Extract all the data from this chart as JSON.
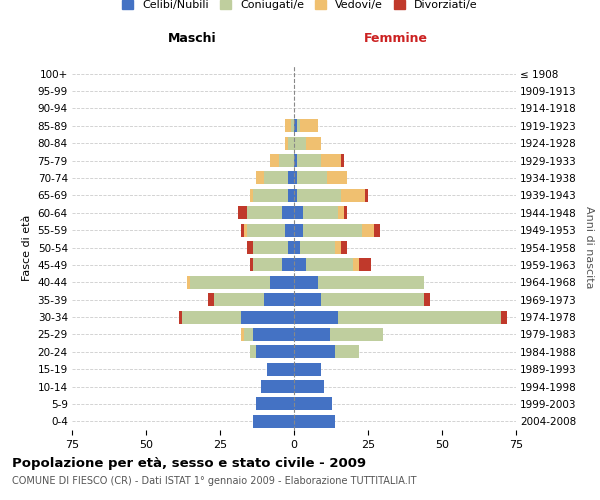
{
  "age_groups": [
    "0-4",
    "5-9",
    "10-14",
    "15-19",
    "20-24",
    "25-29",
    "30-34",
    "35-39",
    "40-44",
    "45-49",
    "50-54",
    "55-59",
    "60-64",
    "65-69",
    "70-74",
    "75-79",
    "80-84",
    "85-89",
    "90-94",
    "95-99",
    "100+"
  ],
  "birth_years": [
    "2004-2008",
    "1999-2003",
    "1994-1998",
    "1989-1993",
    "1984-1988",
    "1979-1983",
    "1974-1978",
    "1969-1973",
    "1964-1968",
    "1959-1963",
    "1954-1958",
    "1949-1953",
    "1944-1948",
    "1939-1943",
    "1934-1938",
    "1929-1933",
    "1924-1928",
    "1919-1923",
    "1914-1918",
    "1909-1913",
    "≤ 1908"
  ],
  "colors": {
    "celibi": "#4472C4",
    "coniugati": "#BFCE9E",
    "vedovi": "#F0C070",
    "divorziati": "#C0392B"
  },
  "male": {
    "celibi": [
      14,
      13,
      11,
      9,
      13,
      14,
      18,
      10,
      8,
      4,
      2,
      3,
      4,
      2,
      2,
      0,
      0,
      0,
      0,
      0,
      0
    ],
    "coniugati": [
      0,
      0,
      0,
      0,
      2,
      3,
      20,
      17,
      27,
      10,
      12,
      13,
      12,
      12,
      8,
      5,
      2,
      1,
      0,
      0,
      0
    ],
    "vedovi": [
      0,
      0,
      0,
      0,
      0,
      1,
      0,
      0,
      1,
      0,
      0,
      1,
      0,
      1,
      3,
      3,
      1,
      2,
      0,
      0,
      0
    ],
    "divorziati": [
      0,
      0,
      0,
      0,
      0,
      0,
      1,
      2,
      0,
      1,
      2,
      1,
      3,
      0,
      0,
      0,
      0,
      0,
      0,
      0,
      0
    ]
  },
  "female": {
    "celibi": [
      14,
      13,
      10,
      9,
      14,
      12,
      15,
      9,
      8,
      4,
      2,
      3,
      3,
      1,
      1,
      1,
      0,
      1,
      0,
      0,
      0
    ],
    "coniugati": [
      0,
      0,
      0,
      0,
      8,
      18,
      55,
      35,
      36,
      16,
      12,
      20,
      12,
      15,
      10,
      8,
      4,
      1,
      0,
      0,
      0
    ],
    "vedovi": [
      0,
      0,
      0,
      0,
      0,
      0,
      0,
      0,
      0,
      2,
      2,
      4,
      2,
      8,
      7,
      7,
      5,
      6,
      0,
      0,
      0
    ],
    "divorziati": [
      0,
      0,
      0,
      0,
      0,
      0,
      2,
      2,
      0,
      4,
      2,
      2,
      1,
      1,
      0,
      1,
      0,
      0,
      0,
      0,
      0
    ]
  },
  "title": "Popolazione per età, sesso e stato civile - 2009",
  "subtitle": "COMUNE DI FIESCO (CR) - Dati ISTAT 1° gennaio 2009 - Elaborazione TUTTITALIA.IT",
  "xlabel_left": "Maschi",
  "xlabel_right": "Femmine",
  "ylabel_left": "Fasce di età",
  "ylabel_right": "Anni di nascita",
  "xlim": 75,
  "legend_labels": [
    "Celibi/Nubili",
    "Coniugati/e",
    "Vedovi/e",
    "Divorziati/e"
  ],
  "bg_color": "#ffffff",
  "grid_color": "#cccccc"
}
